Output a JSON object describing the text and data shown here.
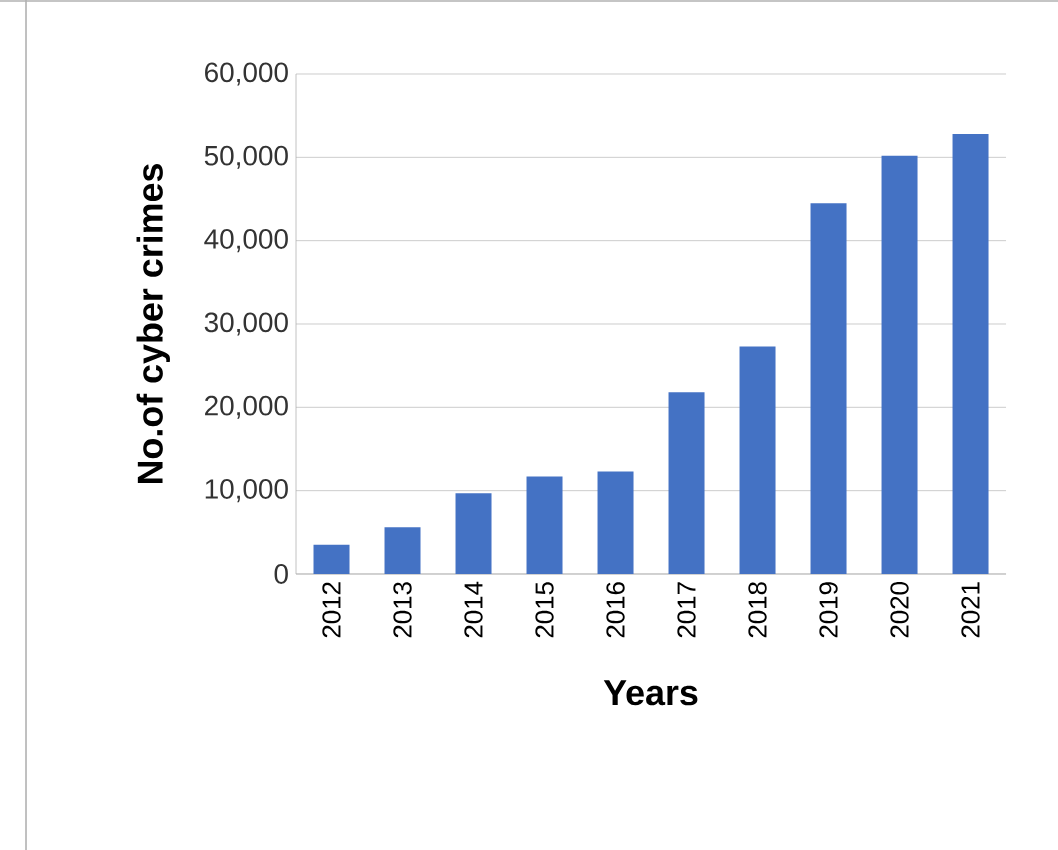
{
  "chart_data": {
    "type": "bar",
    "xlabel": "Years",
    "ylabel": "No.of cyber crimes",
    "categories": [
      "2012",
      "2013",
      "2014",
      "2015",
      "2016",
      "2017",
      "2018",
      "2019",
      "2020",
      "2021"
    ],
    "values": [
      3500,
      5600,
      9700,
      11700,
      12300,
      21800,
      27300,
      44500,
      50200,
      52800
    ],
    "color": "#4472c4",
    "ylim": [
      0,
      60000
    ],
    "yticks": [
      {
        "value": 0,
        "label": "0"
      },
      {
        "value": 10000,
        "label": "10,000"
      },
      {
        "value": 20000,
        "label": "20,000"
      },
      {
        "value": 30000,
        "label": "30,000"
      },
      {
        "value": 40000,
        "label": "40,000"
      },
      {
        "value": 50000,
        "label": "50,000"
      },
      {
        "value": 60000,
        "label": "60,000"
      }
    ],
    "grid": "y"
  }
}
